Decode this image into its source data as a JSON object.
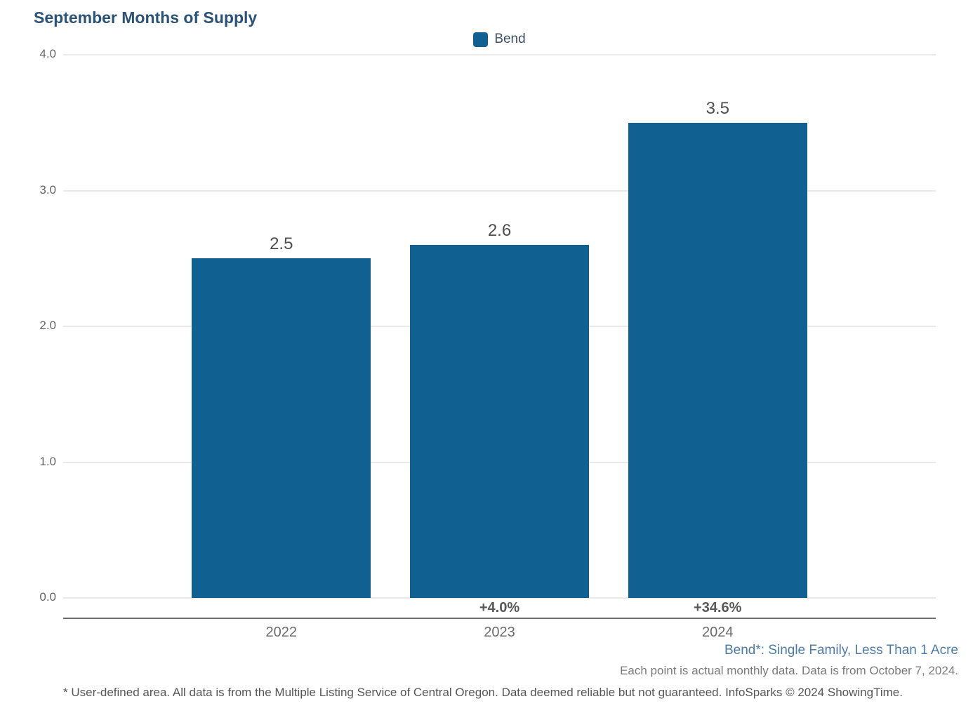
{
  "title": "September Months of Supply",
  "legend": {
    "label": "Bend"
  },
  "footer": {
    "series_note": "Bend*: Single Family, Less Than 1 Acre",
    "data_note": "Each point is actual monthly data. Data is from October 7, 2024.",
    "disclaimer": "* User-defined area. All data is from the Multiple Listing Service of Central Oregon. Data deemed reliable but not guaranteed. InfoSparks © 2024 ShowingTime."
  },
  "colors": {
    "bar": "#106192",
    "title": "#2b5277",
    "gridline": "#e9e9e9",
    "axis_line": "#6f6f6f",
    "tick_label": "#666666",
    "value_label": "#4f4f4f",
    "pct_label": "#595959",
    "note_blue": "#4d7ba8"
  },
  "chart_data": {
    "type": "bar",
    "title": "September Months of Supply",
    "categories": [
      "2022",
      "2023",
      "2024"
    ],
    "series": [
      {
        "name": "Bend",
        "values": [
          2.5,
          2.6,
          3.5
        ]
      }
    ],
    "value_labels": [
      "2.5",
      "2.6",
      "3.5"
    ],
    "pct_change_labels": [
      "",
      "+4.0%",
      "+34.6%"
    ],
    "xlabel": "",
    "ylabel": "",
    "ylim": [
      0,
      4
    ],
    "yticks": [
      0,
      1,
      2,
      3,
      4
    ],
    "ytick_labels": [
      "0.0",
      "1.0",
      "2.0",
      "3.0",
      "4.0"
    ],
    "grid": "horizontal",
    "legend_position": "top-center",
    "bar_color": "#106192"
  }
}
